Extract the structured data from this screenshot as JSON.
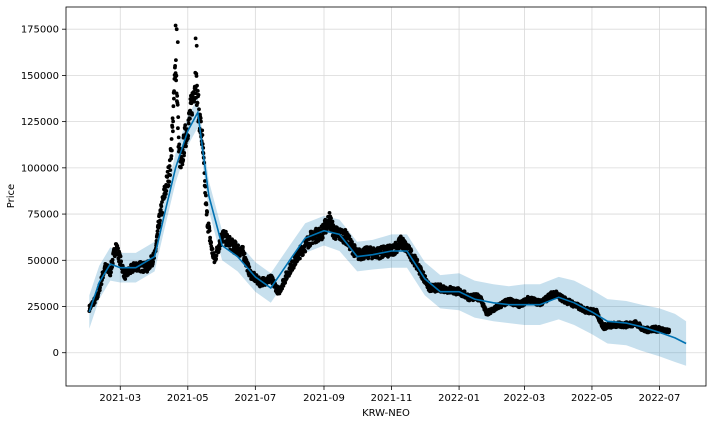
{
  "chart_data": {
    "type": "line",
    "xlabel": "KRW-NEO",
    "ylabel": "Price",
    "xlim": [
      "2021-01-11",
      "2022-08-12"
    ],
    "ylim": [
      -18000,
      187000
    ],
    "grid": true,
    "x_ticks": [
      "2021-03",
      "2021-05",
      "2021-07",
      "2021-09",
      "2021-11",
      "2022-01",
      "2022-03",
      "2022-05",
      "2022-07"
    ],
    "y_ticks": [
      0,
      25000,
      50000,
      75000,
      100000,
      125000,
      150000,
      175000
    ],
    "colors": {
      "observed": "#000000",
      "forecast": "#0072B2",
      "band": "#0072B2"
    },
    "series": [
      {
        "role": "forecast",
        "x": [
          "2021-02-01",
          "2021-02-10",
          "2021-02-20",
          "2021-03-01",
          "2021-03-15",
          "2021-04-01",
          "2021-04-10",
          "2021-04-20",
          "2021-05-01",
          "2021-05-10",
          "2021-05-20",
          "2021-06-01",
          "2021-06-15",
          "2021-07-01",
          "2021-07-15",
          "2021-08-01",
          "2021-08-15",
          "2021-09-01",
          "2021-09-15",
          "2021-10-01",
          "2021-10-15",
          "2021-11-01",
          "2021-11-15",
          "2021-12-01",
          "2021-12-15",
          "2022-01-01",
          "2022-01-15",
          "2022-02-01",
          "2022-02-15",
          "2022-03-01",
          "2022-03-15",
          "2022-04-01",
          "2022-04-15",
          "2022-05-01",
          "2022-05-15",
          "2022-06-01",
          "2022-06-15",
          "2022-07-01",
          "2022-07-15",
          "2022-07-25"
        ],
        "values": [
          22000,
          38000,
          48000,
          46000,
          46000,
          52000,
          75000,
          100000,
          120000,
          130000,
          85000,
          58000,
          52000,
          41000,
          35000,
          50000,
          62000,
          66000,
          64000,
          52000,
          53000,
          55000,
          55000,
          40000,
          33000,
          33000,
          29000,
          27000,
          26000,
          26000,
          26000,
          30000,
          27000,
          22000,
          17000,
          16000,
          14000,
          11000,
          8000,
          5000
        ]
      },
      {
        "role": "uncertainty",
        "x": [
          "2021-02-01",
          "2021-02-10",
          "2021-02-20",
          "2021-03-01",
          "2021-03-15",
          "2021-04-01",
          "2021-04-10",
          "2021-04-20",
          "2021-05-01",
          "2021-05-10",
          "2021-05-20",
          "2021-06-01",
          "2021-06-15",
          "2021-07-01",
          "2021-07-15",
          "2021-08-01",
          "2021-08-15",
          "2021-09-01",
          "2021-09-15",
          "2021-10-01",
          "2021-10-15",
          "2021-11-01",
          "2021-11-15",
          "2021-12-01",
          "2021-12-15",
          "2022-01-01",
          "2022-01-15",
          "2022-02-01",
          "2022-02-15",
          "2022-03-01",
          "2022-03-15",
          "2022-04-01",
          "2022-04-15",
          "2022-05-01",
          "2022-05-15",
          "2022-06-01",
          "2022-06-15",
          "2022-07-01",
          "2022-07-15",
          "2022-07-25"
        ],
        "lower": [
          13000,
          29000,
          39000,
          38000,
          38000,
          44000,
          67000,
          92000,
          112000,
          122000,
          77000,
          50000,
          44000,
          33000,
          27000,
          42000,
          54000,
          58000,
          55000,
          44000,
          45000,
          46000,
          46000,
          31000,
          24000,
          23000,
          19000,
          17000,
          16000,
          15000,
          15000,
          18000,
          15000,
          10000,
          5000,
          4000,
          1000,
          -2000,
          -5000,
          -7000
        ],
        "upper": [
          31000,
          47000,
          57000,
          54000,
          54000,
          60000,
          83000,
          108000,
          128000,
          138000,
          93000,
          66000,
          60000,
          49000,
          43000,
          58000,
          70000,
          74000,
          72000,
          60000,
          61000,
          64000,
          64000,
          49000,
          42000,
          43000,
          39000,
          37000,
          36000,
          37000,
          37000,
          41000,
          39000,
          34000,
          29000,
          28000,
          26000,
          24000,
          21000,
          17000
        ]
      },
      {
        "role": "observed",
        "x": [
          "2021-02-01",
          "2021-02-08",
          "2021-02-15",
          "2021-02-20",
          "2021-02-25",
          "2021-03-05",
          "2021-03-15",
          "2021-03-25",
          "2021-04-01",
          "2021-04-05",
          "2021-04-10",
          "2021-04-15",
          "2021-04-18",
          "2021-04-20",
          "2021-04-23",
          "2021-04-25",
          "2021-04-28",
          "2021-05-02",
          "2021-05-06",
          "2021-05-08",
          "2021-05-10",
          "2021-05-14",
          "2021-05-18",
          "2021-05-22",
          "2021-05-25",
          "2021-06-01",
          "2021-06-10",
          "2021-06-20",
          "2021-06-26",
          "2021-07-05",
          "2021-07-15",
          "2021-07-22",
          "2021-08-01",
          "2021-08-10",
          "2021-08-20",
          "2021-08-30",
          "2021-09-06",
          "2021-09-10",
          "2021-09-20",
          "2021-10-01",
          "2021-10-10",
          "2021-10-20",
          "2021-11-01",
          "2021-11-10",
          "2021-11-20",
          "2021-12-01",
          "2021-12-05",
          "2021-12-15",
          "2022-01-01",
          "2022-01-10",
          "2022-01-20",
          "2022-01-26",
          "2022-02-05",
          "2022-02-15",
          "2022-02-25",
          "2022-03-05",
          "2022-03-15",
          "2022-03-28",
          "2022-04-05",
          "2022-04-15",
          "2022-04-25",
          "2022-05-05",
          "2022-05-11",
          "2022-05-20",
          "2022-06-01",
          "2022-06-10",
          "2022-06-18",
          "2022-06-25",
          "2022-07-05",
          "2022-07-10"
        ],
        "values": [
          24000,
          30000,
          46000,
          44000,
          58000,
          42000,
          47000,
          46000,
          52000,
          70000,
          86000,
          100000,
          130000,
          160000,
          110000,
          100000,
          115000,
          125000,
          140000,
          150000,
          135000,
          115000,
          75000,
          58000,
          50000,
          64000,
          58000,
          54000,
          43000,
          38000,
          40000,
          33000,
          45000,
          54000,
          62000,
          65000,
          72000,
          65000,
          63000,
          53000,
          54000,
          54000,
          55000,
          60000,
          52000,
          40000,
          35000,
          35000,
          33000,
          30000,
          30000,
          21000,
          25000,
          28000,
          26000,
          29000,
          27000,
          32000,
          29000,
          26000,
          23000,
          22000,
          14000,
          15000,
          15000,
          16000,
          12000,
          13000,
          12000,
          11000
        ]
      },
      {
        "role": "observed-outliers",
        "x": [
          "2021-04-20",
          "2021-04-21",
          "2021-04-22",
          "2021-05-08",
          "2021-05-09"
        ],
        "values": [
          177000,
          175000,
          168000,
          170000,
          166000
        ]
      }
    ]
  }
}
